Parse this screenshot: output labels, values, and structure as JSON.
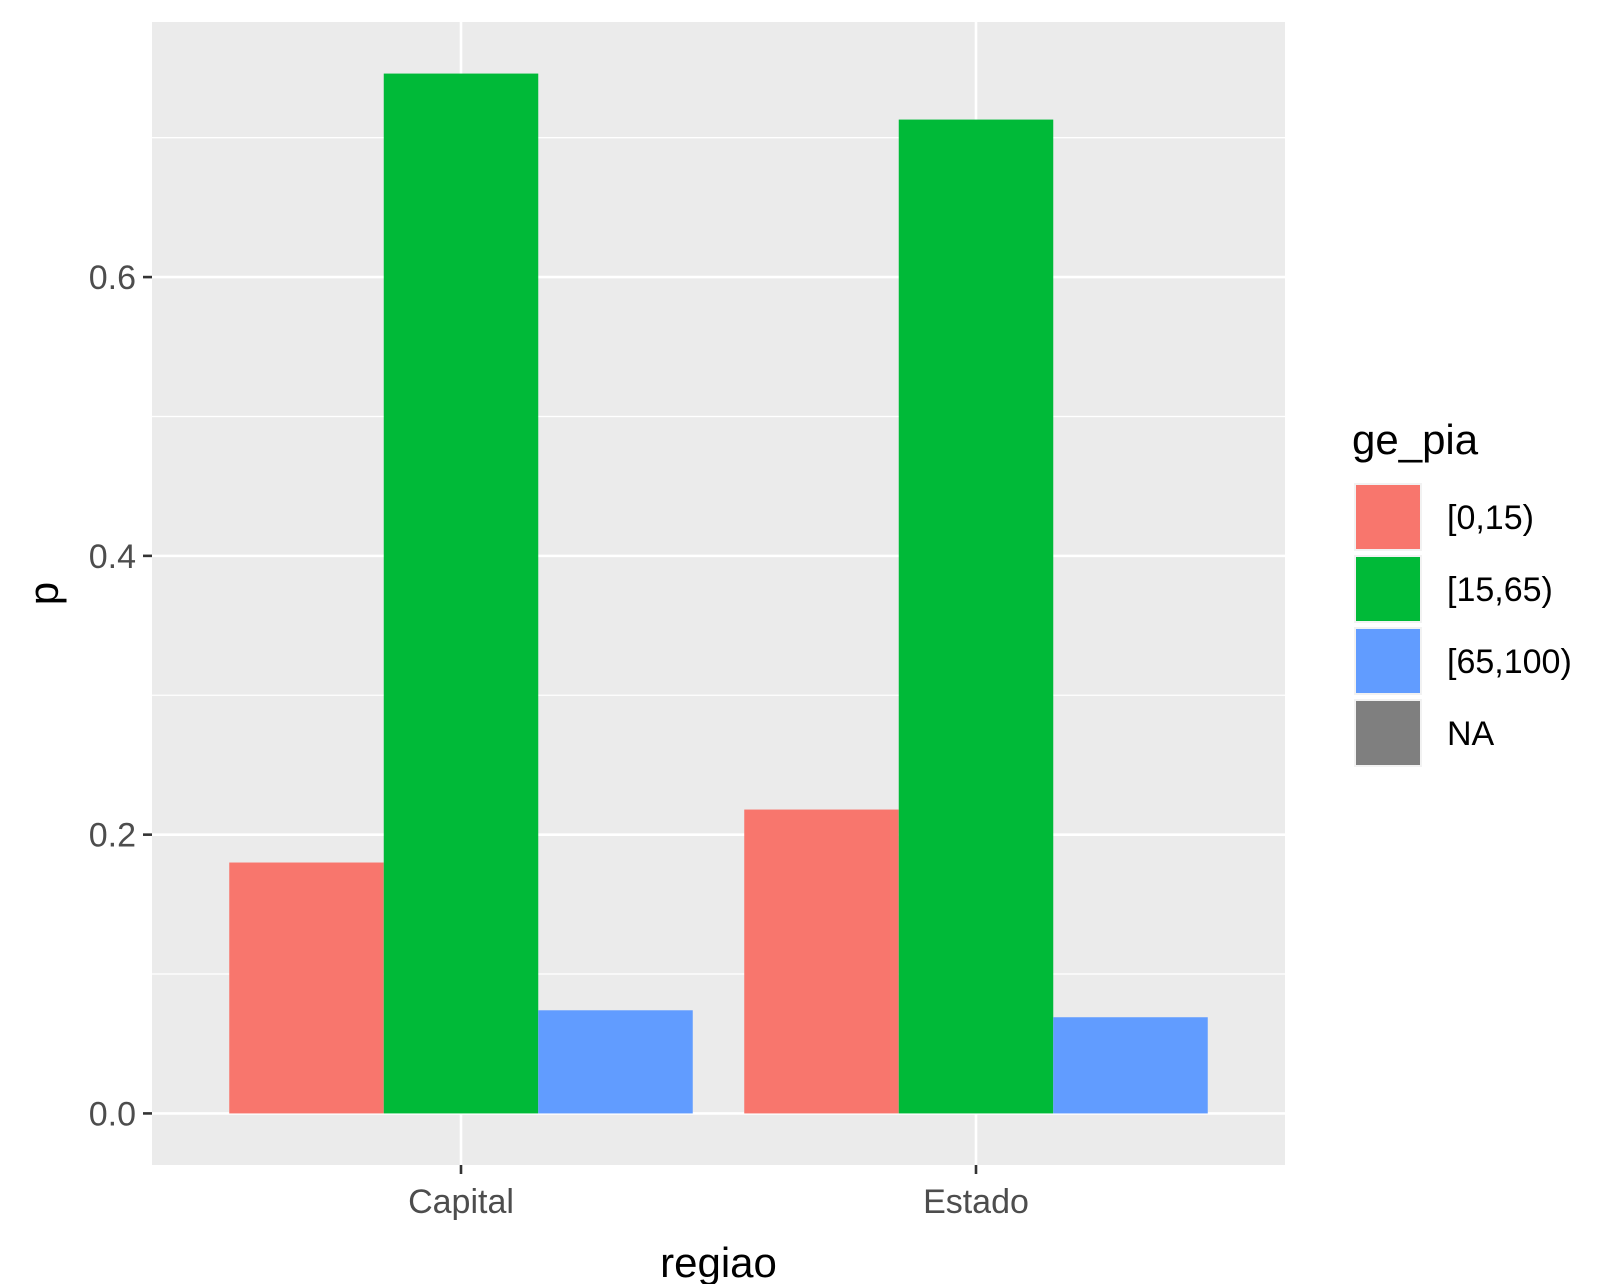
{
  "chart_data": {
    "type": "bar",
    "categories": [
      "Capital",
      "Estado"
    ],
    "series": [
      {
        "name": "[0,15)",
        "values": [
          0.18,
          0.218
        ],
        "color": "#F8766D"
      },
      {
        "name": "[15,65)",
        "values": [
          0.746,
          0.713
        ],
        "color": "#00BA38"
      },
      {
        "name": "[65,100)",
        "values": [
          0.074,
          0.069
        ],
        "color": "#619CFF"
      }
    ],
    "xlabel": "regiao",
    "ylabel": "p",
    "ylim": [
      -0.037,
      0.783
    ],
    "yticks": [
      0.0,
      0.2,
      0.4,
      0.6
    ],
    "ytick_labels": [
      "0.0",
      "0.2",
      "0.4",
      "0.6"
    ],
    "legend": {
      "title": "ge_pia",
      "position": "right",
      "entries": [
        {
          "label": "[0,15)",
          "color": "#F8766D"
        },
        {
          "label": "[15,65)",
          "color": "#00BA38"
        },
        {
          "label": "[65,100)",
          "color": "#619CFF"
        },
        {
          "label": "NA",
          "color": "#7F7F7F"
        }
      ]
    },
    "panel_background": "#EBEBEB",
    "grid": true
  }
}
